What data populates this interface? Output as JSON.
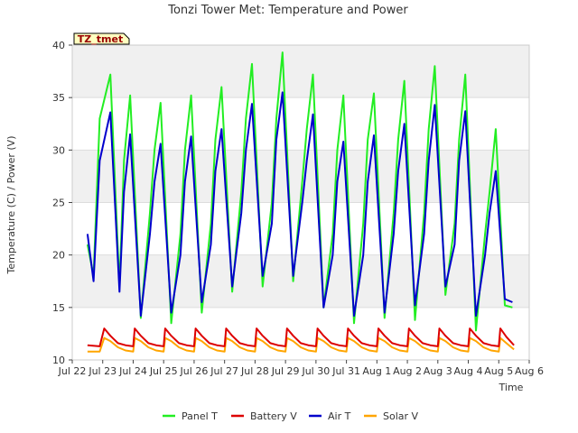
{
  "chart_data": {
    "type": "line",
    "title": "Tonzi Tower Met: Temperature and Power",
    "xlabel": "Time",
    "ylabel": "Temperature (C) / Power (V)",
    "badge": "TZ_tmet",
    "ylim": [
      10,
      40
    ],
    "yticks": [
      10,
      15,
      20,
      25,
      30,
      35,
      40
    ],
    "xlim": [
      0,
      15
    ],
    "xticks": [
      {
        "x": 0,
        "label": "Jul 22"
      },
      {
        "x": 1,
        "label": "Jul 23"
      },
      {
        "x": 2,
        "label": "Jul 24"
      },
      {
        "x": 3,
        "label": "Jul 25"
      },
      {
        "x": 4,
        "label": "Jul 26"
      },
      {
        "x": 5,
        "label": "Jul 27"
      },
      {
        "x": 6,
        "label": "Jul 28"
      },
      {
        "x": 7,
        "label": "Jul 29"
      },
      {
        "x": 8,
        "label": "Jul 30"
      },
      {
        "x": 9,
        "label": "Jul 31"
      },
      {
        "x": 10,
        "label": "Aug 1"
      },
      {
        "x": 11,
        "label": "Aug 2"
      },
      {
        "x": 12,
        "label": "Aug 3"
      },
      {
        "x": 13,
        "label": "Aug 4"
      },
      {
        "x": 14,
        "label": "Aug 5"
      },
      {
        "x": 15,
        "label": "Aug 6"
      }
    ],
    "grid": true,
    "legend_position": "bottom",
    "series": [
      {
        "name": "Panel T",
        "color": "#22ee22",
        "x": [
          0.5,
          0.7,
          0.9,
          1.25,
          1.55,
          1.7,
          1.9,
          2.25,
          2.55,
          2.7,
          2.9,
          3.25,
          3.55,
          3.7,
          3.9,
          4.25,
          4.55,
          4.7,
          4.9,
          5.25,
          5.55,
          5.7,
          5.9,
          6.25,
          6.55,
          6.7,
          6.9,
          7.25,
          7.55,
          7.7,
          7.9,
          8.25,
          8.55,
          8.7,
          8.9,
          9.25,
          9.55,
          9.7,
          9.9,
          10.25,
          10.55,
          10.7,
          10.9,
          11.25,
          11.55,
          11.7,
          11.9,
          12.25,
          12.55,
          12.7,
          12.9,
          13.25,
          13.55,
          13.7,
          13.9,
          14.2,
          14.45
        ],
        "y": [
          21.0,
          18.0,
          33.0,
          37.2,
          17.0,
          29.0,
          35.2,
          14.0,
          24.0,
          30.0,
          34.5,
          13.5,
          22.0,
          30.0,
          35.2,
          14.5,
          23.0,
          31.0,
          36.0,
          16.5,
          26.0,
          33.0,
          38.2,
          17.0,
          25.0,
          33.0,
          39.3,
          17.5,
          27.0,
          32.0,
          37.2,
          15.0,
          22.0,
          30.0,
          35.2,
          13.5,
          23.0,
          31.0,
          35.4,
          14.0,
          24.0,
          31.0,
          36.6,
          13.8,
          24.0,
          32.0,
          38.0,
          16.2,
          23.0,
          31.0,
          37.2,
          12.8,
          22.0,
          26.0,
          32.0,
          15.2,
          15.0
        ]
      },
      {
        "name": "Battery V",
        "color": "#dd0000",
        "x": [
          0.5,
          0.9,
          1.05,
          1.25,
          1.5,
          1.75,
          2.0,
          2.05,
          2.25,
          2.5,
          2.75,
          3.0,
          3.05,
          3.25,
          3.5,
          3.75,
          4.0,
          4.05,
          4.25,
          4.5,
          4.75,
          5.0,
          5.05,
          5.25,
          5.5,
          5.75,
          6.0,
          6.05,
          6.25,
          6.5,
          6.75,
          7.0,
          7.05,
          7.25,
          7.5,
          7.75,
          8.0,
          8.05,
          8.25,
          8.5,
          8.75,
          9.0,
          9.05,
          9.25,
          9.5,
          9.75,
          10.0,
          10.05,
          10.25,
          10.5,
          10.75,
          11.0,
          11.05,
          11.25,
          11.5,
          11.75,
          12.0,
          12.05,
          12.25,
          12.5,
          12.75,
          13.0,
          13.05,
          13.25,
          13.5,
          13.75,
          14.0,
          14.05,
          14.25,
          14.5
        ],
        "y": [
          11.4,
          11.3,
          13.0,
          12.3,
          11.6,
          11.4,
          11.3,
          13.0,
          12.3,
          11.6,
          11.4,
          11.3,
          13.0,
          12.3,
          11.6,
          11.4,
          11.3,
          13.0,
          12.3,
          11.6,
          11.4,
          11.3,
          13.0,
          12.3,
          11.6,
          11.4,
          11.3,
          13.0,
          12.3,
          11.6,
          11.4,
          11.3,
          13.0,
          12.3,
          11.6,
          11.4,
          11.3,
          13.0,
          12.3,
          11.6,
          11.4,
          11.3,
          13.0,
          12.3,
          11.6,
          11.4,
          11.3,
          13.0,
          12.3,
          11.6,
          11.4,
          11.3,
          13.0,
          12.3,
          11.6,
          11.4,
          11.3,
          13.0,
          12.3,
          11.6,
          11.4,
          11.3,
          13.0,
          12.3,
          11.6,
          11.4,
          11.3,
          13.0,
          12.2,
          11.4
        ]
      },
      {
        "name": "Air T",
        "color": "#0000cc",
        "x": [
          0.5,
          0.7,
          0.9,
          1.25,
          1.55,
          1.7,
          1.9,
          2.25,
          2.55,
          2.7,
          2.9,
          3.25,
          3.55,
          3.7,
          3.9,
          4.25,
          4.55,
          4.7,
          4.9,
          5.25,
          5.55,
          5.7,
          5.9,
          6.25,
          6.55,
          6.7,
          6.9,
          7.25,
          7.55,
          7.7,
          7.9,
          8.25,
          8.55,
          8.7,
          8.9,
          9.25,
          9.55,
          9.7,
          9.9,
          10.25,
          10.55,
          10.7,
          10.9,
          11.25,
          11.55,
          11.7,
          11.9,
          12.25,
          12.55,
          12.7,
          12.9,
          13.25,
          13.55,
          13.7,
          13.9,
          14.2,
          14.45
        ],
        "y": [
          22.0,
          17.5,
          29.0,
          33.6,
          16.5,
          26.0,
          31.5,
          14.2,
          22.0,
          27.0,
          30.6,
          14.5,
          20.0,
          27.0,
          31.3,
          15.5,
          21.0,
          28.0,
          32.0,
          17.0,
          24.0,
          30.0,
          34.4,
          18.0,
          23.0,
          31.0,
          35.5,
          18.0,
          25.0,
          29.0,
          33.4,
          15.0,
          20.0,
          27.0,
          30.8,
          14.2,
          20.0,
          27.0,
          31.4,
          14.5,
          22.0,
          28.0,
          32.5,
          15.2,
          22.0,
          29.0,
          34.3,
          17.0,
          21.0,
          29.0,
          33.7,
          14.2,
          20.0,
          24.0,
          28.0,
          15.8,
          15.5
        ]
      },
      {
        "name": "Solar V",
        "color": "#ffa500",
        "x": [
          0.5,
          0.9,
          1.05,
          1.25,
          1.5,
          1.75,
          2.0,
          2.05,
          2.25,
          2.5,
          2.75,
          3.0,
          3.05,
          3.25,
          3.5,
          3.75,
          4.0,
          4.05,
          4.25,
          4.5,
          4.75,
          5.0,
          5.05,
          5.25,
          5.5,
          5.75,
          6.0,
          6.05,
          6.25,
          6.5,
          6.75,
          7.0,
          7.05,
          7.25,
          7.5,
          7.75,
          8.0,
          8.05,
          8.25,
          8.5,
          8.75,
          9.0,
          9.05,
          9.25,
          9.5,
          9.75,
          10.0,
          10.05,
          10.25,
          10.5,
          10.75,
          11.0,
          11.05,
          11.25,
          11.5,
          11.75,
          12.0,
          12.05,
          12.25,
          12.5,
          12.75,
          13.0,
          13.05,
          13.25,
          13.5,
          13.75,
          14.0,
          14.05,
          14.25,
          14.5
        ],
        "y": [
          10.8,
          10.8,
          12.1,
          11.8,
          11.2,
          10.9,
          10.8,
          12.1,
          11.8,
          11.2,
          10.9,
          10.8,
          12.1,
          11.8,
          11.2,
          10.9,
          10.8,
          12.1,
          11.8,
          11.2,
          10.9,
          10.8,
          12.1,
          11.8,
          11.2,
          10.9,
          10.8,
          12.1,
          11.8,
          11.2,
          10.9,
          10.8,
          12.1,
          11.8,
          11.2,
          10.9,
          10.8,
          12.1,
          11.8,
          11.2,
          10.9,
          10.8,
          12.1,
          11.8,
          11.2,
          10.9,
          10.8,
          12.1,
          11.8,
          11.2,
          10.9,
          10.8,
          12.1,
          11.8,
          11.2,
          10.9,
          10.8,
          12.1,
          11.8,
          11.2,
          10.9,
          10.8,
          12.1,
          11.8,
          11.2,
          10.9,
          10.8,
          12.1,
          11.6,
          11.0
        ]
      }
    ]
  }
}
